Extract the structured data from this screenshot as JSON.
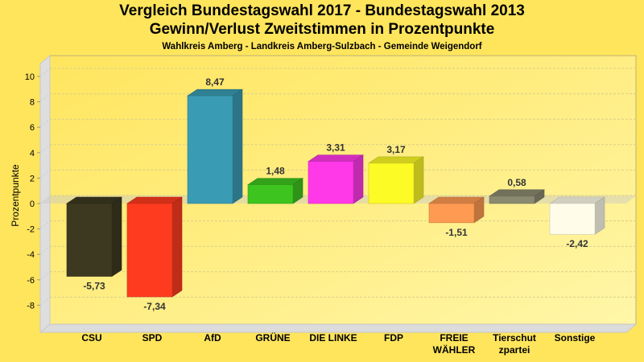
{
  "chart_data": {
    "type": "bar",
    "title": "Vergleich Bundestagswahl 2017 - Bundestagswahl 2013",
    "subtitle": "Gewinn/Verlust Zweitstimmen in Prozentpunkte",
    "subsubtitle": "Wahlkreis Amberg - Landkreis Amberg-Sulzbach - Gemeinde Weigendorf",
    "xlabel": "",
    "ylabel": "Prozentpunkte",
    "ylim": [
      -9.5,
      11
    ],
    "yticks": [
      10,
      8,
      6,
      4,
      2,
      0,
      -2,
      -4,
      -6,
      -8
    ],
    "grid": true,
    "style": "3d",
    "categories": [
      [
        "CSU"
      ],
      [
        "SPD"
      ],
      [
        "AfD"
      ],
      [
        "GRÜNE"
      ],
      [
        "DIE LINKE"
      ],
      [
        "FDP"
      ],
      [
        "FREIE",
        "WÄHLER"
      ],
      [
        "Tierschut",
        "zpartei"
      ],
      [
        "Sonstige"
      ]
    ],
    "values": [
      -5.73,
      -7.34,
      8.47,
      1.48,
      3.31,
      3.17,
      -1.51,
      0.58,
      -2.42
    ],
    "value_labels": [
      "-5,73",
      "-7,34",
      "8,47",
      "1,48",
      "3,31",
      "3,17",
      "-1,51",
      "0,58",
      "-2,42"
    ],
    "colors": [
      "#3d3920",
      "#ff3b1f",
      "#3a9cb4",
      "#3ec41e",
      "#ff38e8",
      "#fdfb26",
      "#ff9a52",
      "#8a8a70",
      "#fffdea"
    ]
  }
}
